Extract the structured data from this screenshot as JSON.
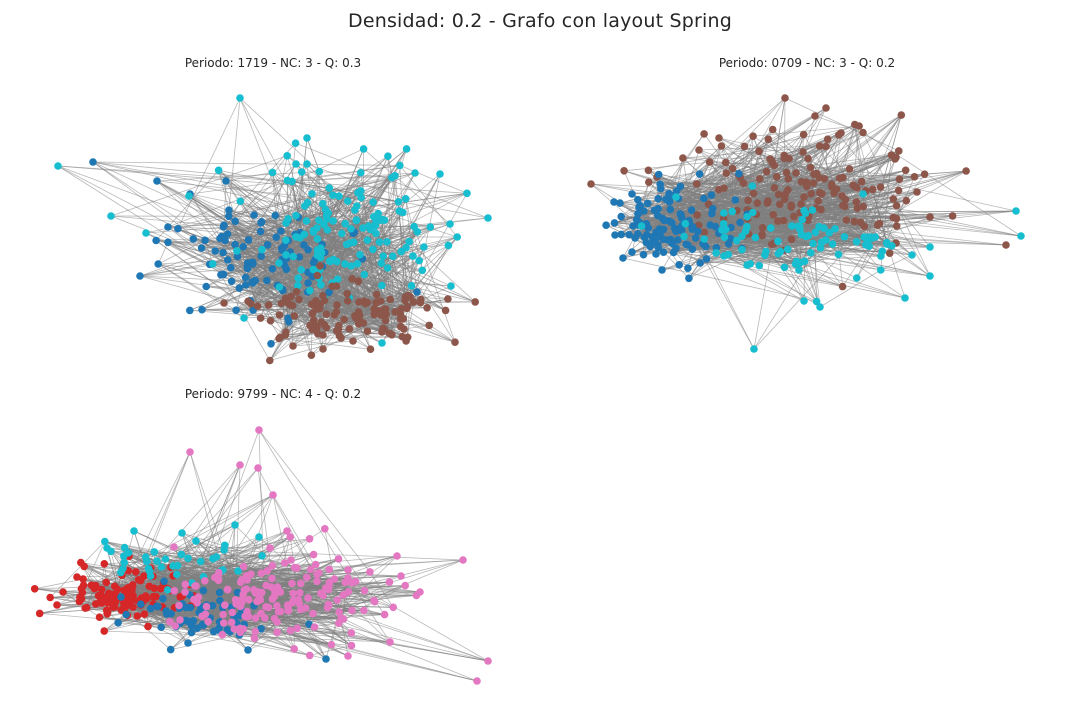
{
  "figure": {
    "title": "Densidad: 0.2 - Grafo con layout Spring"
  },
  "colors": {
    "edge": "#808080",
    "blue": "#1f77b4",
    "cyan": "#17becf",
    "brown": "#8c564b",
    "red": "#d62728",
    "pink": "#e377c2"
  },
  "panels": [
    {
      "id": "p1",
      "title": "Periodo: 1719 - NC: 3 - Q: 0.3",
      "communities": [
        "blue",
        "cyan",
        "brown"
      ]
    },
    {
      "id": "p2",
      "title": "Periodo: 0709 - NC: 3 - Q: 0.2",
      "communities": [
        "brown",
        "blue",
        "cyan"
      ]
    },
    {
      "id": "p3",
      "title": "Periodo: 9799 - NC: 4 - Q: 0.2",
      "communities": [
        "red",
        "blue",
        "cyan",
        "pink"
      ]
    }
  ]
}
